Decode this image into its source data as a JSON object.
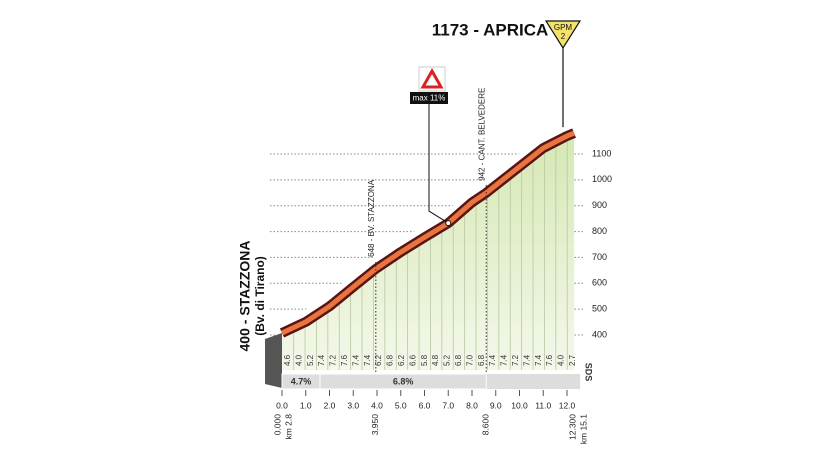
{
  "chart_data": {
    "type": "elevation-profile",
    "title": "1173 - APRICA",
    "badge": {
      "label": "GPM",
      "value": 2
    },
    "start_label": "400 - STAZZONA",
    "start_sublabel": "(Bv. di Tirano)",
    "x": [
      0,
      1,
      2,
      3,
      3.95,
      5,
      6,
      7,
      8,
      8.6,
      9,
      10,
      11,
      12,
      12.3
    ],
    "values": [
      400,
      443,
      503,
      578,
      648,
      713,
      770,
      825,
      905,
      942,
      971,
      1043,
      1115,
      1162,
      1173
    ],
    "xlim": [
      -0.7,
      13.2
    ],
    "ylim": [
      350,
      1190
    ],
    "yticks": [
      400,
      500,
      600,
      700,
      800,
      900,
      1000,
      1100
    ],
    "xticks": [
      {
        "value": 0,
        "label": "0.0"
      },
      {
        "value": 1,
        "label": "1.0"
      },
      {
        "value": 2,
        "label": "2.0"
      },
      {
        "value": 3,
        "label": "3.0"
      },
      {
        "value": 4,
        "label": "4.0"
      },
      {
        "value": 5,
        "label": "5.0"
      },
      {
        "value": 6,
        "label": "6.0"
      },
      {
        "value": 7,
        "label": "7.0"
      },
      {
        "value": 8,
        "label": "8.0"
      },
      {
        "value": 9,
        "label": "9.0"
      },
      {
        "value": 10,
        "label": "10.0"
      },
      {
        "value": 11,
        "label": "11.0"
      },
      {
        "value": 12,
        "label": "12.0"
      }
    ],
    "markers": [
      {
        "km": {
          "value": 3.95,
          "label": "3.950"
        },
        "label": "648 - BV. STAZZONA"
      },
      {
        "km": {
          "value": 8.6,
          "label": "8.600"
        },
        "label": "942 - CANT. BELVEDERE"
      }
    ],
    "start_km": {
      "value": 0,
      "label": "0.000"
    },
    "start_total": "km 2.8",
    "end_km": {
      "value": 12.3,
      "label": "12.300"
    },
    "end_total": "km 15.1",
    "max_grade": {
      "km": 7.0,
      "label": "max 11%"
    },
    "grades": [
      4.6,
      {
        "value": 4,
        "label": "4.0"
      },
      5.2,
      7.4,
      7.2,
      7.6,
      7.4,
      7.4,
      6.2,
      6.8,
      6.2,
      6.6,
      5.8,
      4.8,
      5.2,
      6.8,
      {
        "value": 7,
        "label": "7.0"
      },
      6.8,
      7.4,
      7.4,
      7.2,
      7.4,
      7.4,
      7.6,
      {
        "value": 4,
        "label": "4.0"
      },
      2.7
    ],
    "summary": [
      {
        "from": 0,
        "to": 1.6,
        "label": "4.7%"
      },
      {
        "from": 1.6,
        "to": 8.6,
        "label": "6.8%"
      }
    ],
    "side_label": "SDS"
  }
}
